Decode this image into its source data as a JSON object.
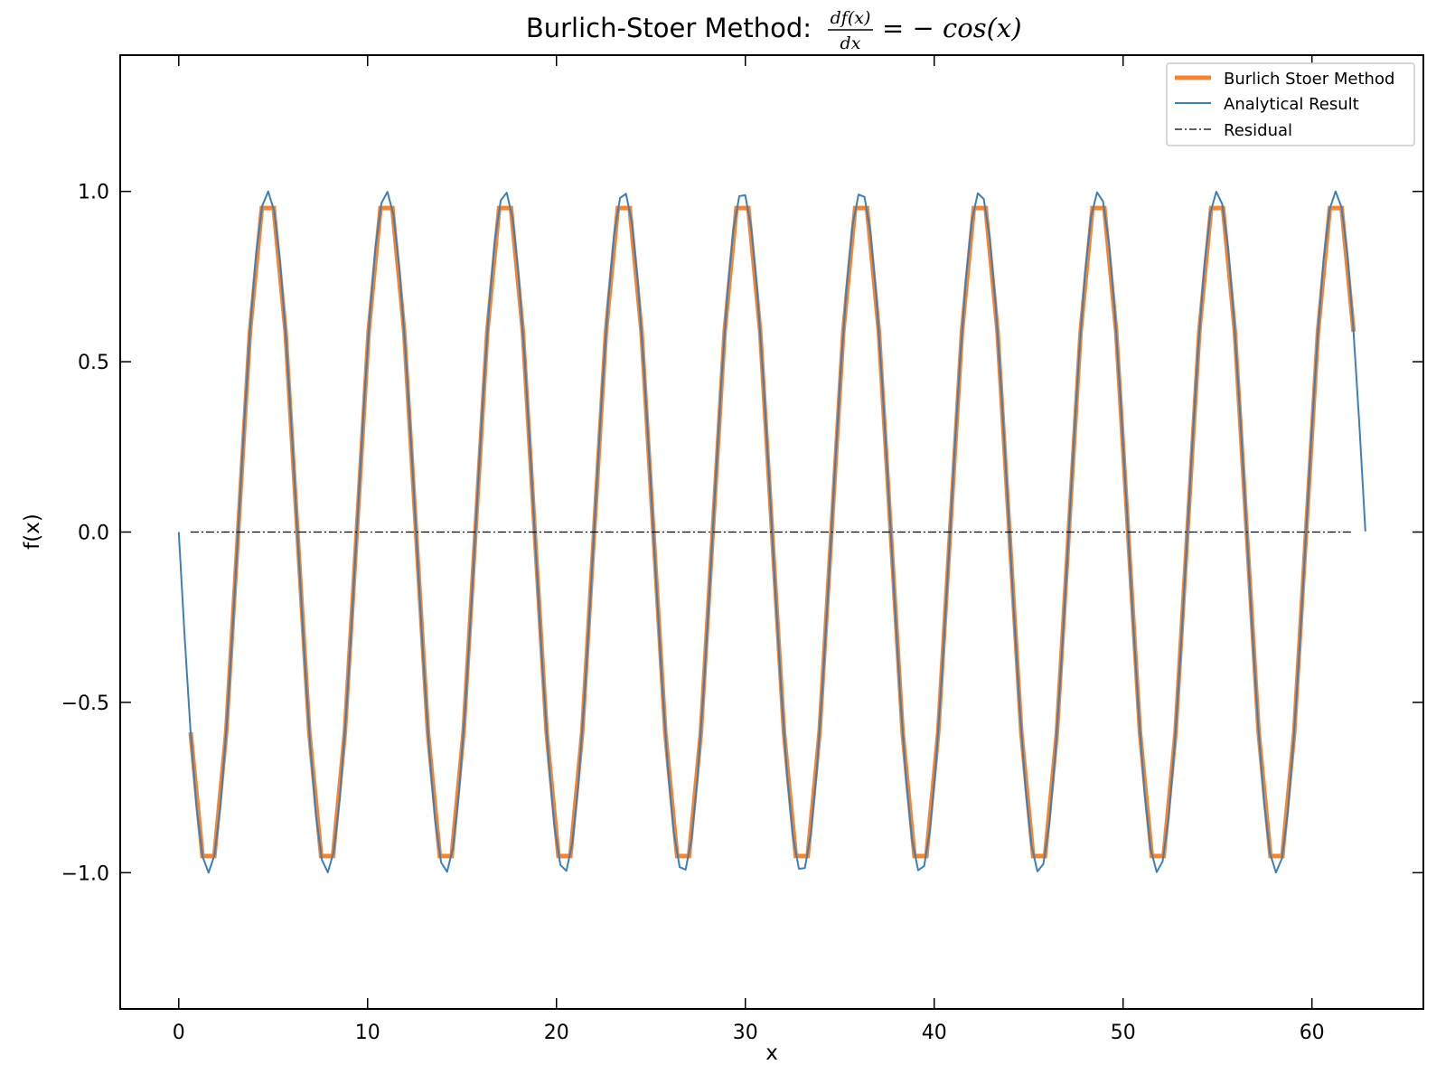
{
  "chart_data": {
    "type": "line",
    "title": {
      "prefix": "Burlich-Stoer Method: ",
      "numerator": "df(x)",
      "denominator": "dx",
      "suffix": "= − cos(x)"
    },
    "xlabel": "x",
    "ylabel": "f(x)",
    "xlim": [
      -3.1,
      65.9
    ],
    "ylim": [
      -1.4,
      1.4
    ],
    "xticks": [
      0,
      10,
      20,
      30,
      40,
      50,
      60
    ],
    "xtick_labels": [
      "0",
      "10",
      "20",
      "30",
      "40",
      "50",
      "60"
    ],
    "yticks": [
      -1.0,
      -0.5,
      0.0,
      0.5,
      1.0
    ],
    "ytick_labels": [
      "−1.0",
      "−0.5",
      "0.0",
      "0.5",
      "1.0"
    ],
    "grid": false,
    "legend_position": "top-right",
    "series": [
      {
        "name": "Burlich Stoer Method",
        "color": "#f28634",
        "style": "solid-thick",
        "x": [
          0.628,
          1.257,
          1.885,
          2.513,
          3.142,
          3.77,
          4.398,
          5.027,
          5.655,
          6.283,
          6.912,
          7.54,
          8.168,
          8.796,
          9.425,
          10.053,
          10.681,
          11.31,
          11.938,
          12.566,
          13.195,
          13.823,
          14.451,
          15.08,
          15.708,
          16.336,
          16.965,
          17.593,
          18.221,
          18.85,
          19.478,
          20.106,
          20.735,
          21.363,
          21.991,
          22.619,
          23.248,
          23.876,
          24.504,
          25.133,
          25.761,
          26.389,
          27.018,
          27.646,
          28.274,
          28.903,
          29.531,
          30.159,
          30.788,
          31.416,
          32.044,
          32.673,
          33.301,
          33.929,
          34.558,
          35.186,
          35.814,
          36.442,
          37.071,
          37.699,
          38.327,
          38.956,
          39.584,
          40.212,
          40.841,
          41.469,
          42.097,
          42.726,
          43.354,
          43.982,
          44.611,
          45.239,
          45.867,
          46.496,
          47.124,
          47.752,
          48.381,
          49.009,
          49.637,
          50.265,
          50.894,
          51.522,
          52.15,
          52.779,
          53.407,
          54.035,
          54.664,
          55.292,
          55.92,
          56.549,
          57.177,
          57.805,
          58.434,
          59.062,
          59.69,
          60.319,
          60.947,
          61.575,
          62.204
        ],
        "y": [
          -0.588,
          -0.951,
          -0.951,
          -0.588,
          0.0,
          0.588,
          0.951,
          0.951,
          0.588,
          0.0,
          -0.588,
          -0.951,
          -0.951,
          -0.588,
          0.0,
          0.588,
          0.951,
          0.951,
          0.588,
          0.0,
          -0.588,
          -0.951,
          -0.951,
          -0.588,
          0.0,
          0.588,
          0.951,
          0.951,
          0.588,
          0.0,
          -0.588,
          -0.951,
          -0.951,
          -0.588,
          0.0,
          0.588,
          0.951,
          0.951,
          0.588,
          0.0,
          -0.588,
          -0.951,
          -0.951,
          -0.588,
          0.0,
          0.588,
          0.951,
          0.951,
          0.588,
          0.0,
          -0.588,
          -0.951,
          -0.951,
          -0.588,
          0.0,
          0.588,
          0.951,
          0.951,
          0.588,
          0.0,
          -0.588,
          -0.951,
          -0.951,
          -0.588,
          0.0,
          0.588,
          0.951,
          0.951,
          0.588,
          0.0,
          -0.588,
          -0.951,
          -0.951,
          -0.588,
          0.0,
          0.588,
          0.951,
          0.951,
          0.588,
          0.0,
          -0.588,
          -0.951,
          -0.951,
          -0.588,
          0.0,
          0.588,
          0.951,
          0.951,
          0.588,
          0.0,
          -0.588,
          -0.951,
          -0.951,
          -0.588,
          0.0,
          0.588,
          0.951,
          0.951,
          0.588
        ]
      },
      {
        "name": "Analytical Result",
        "color": "#3f7fb6",
        "style": "solid-thin",
        "function": "-sin(x)",
        "x_range": [
          0,
          62.83
        ],
        "samples": 200
      },
      {
        "name": "Residual",
        "color": "#000000",
        "style": "dash-dot",
        "x": [
          0.628,
          62.204
        ],
        "y": [
          0.0,
          0.0
        ]
      }
    ]
  }
}
